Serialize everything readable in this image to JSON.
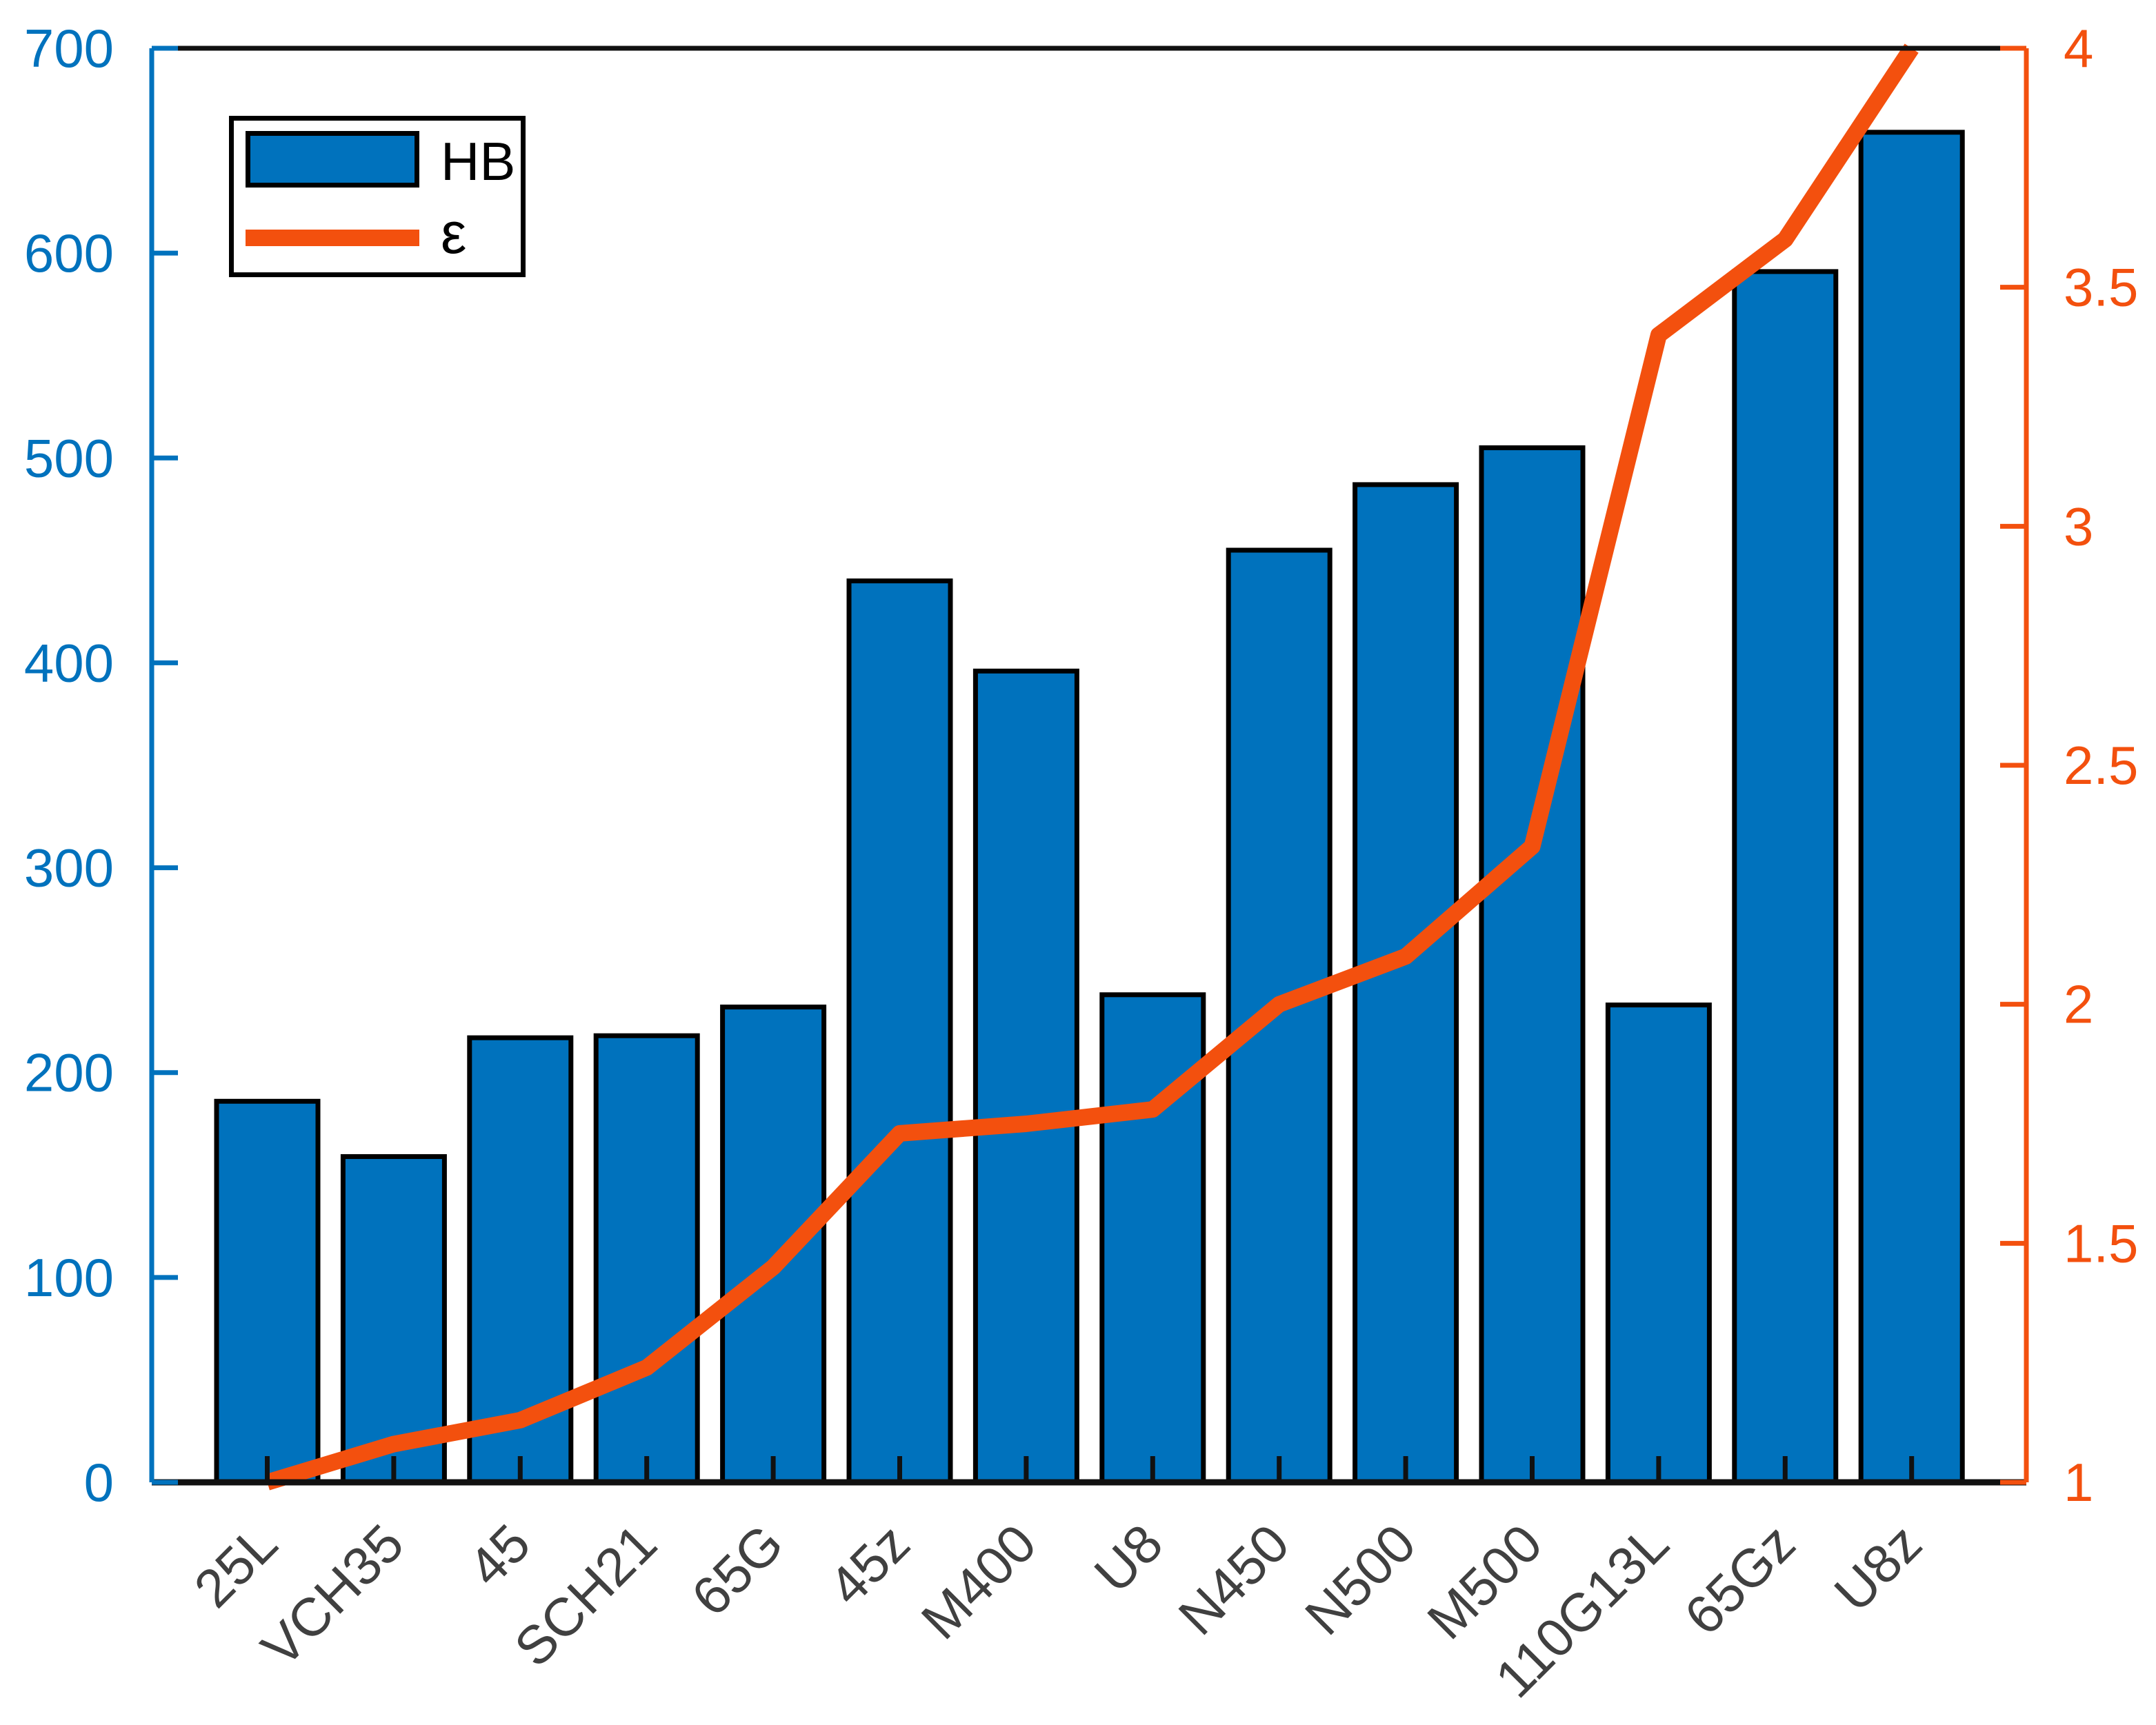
{
  "figure": {
    "background": "#ffffff",
    "plot_box_color": "#000000"
  },
  "legend": {
    "position": "top-left-inside",
    "items": [
      {
        "label": "HB",
        "swatch": "bar-swatch",
        "color": "#0072BD"
      },
      {
        "label": "ε",
        "swatch": "line-swatch",
        "color": "#F3500E"
      }
    ]
  },
  "chart_data": {
    "type": "bar",
    "subtype": "bar-line-combo-dual-axis",
    "title": "",
    "xlabel": "",
    "ylabel": "",
    "categories": [
      "25L",
      "VCH35",
      "45",
      "SCH21",
      "65G",
      "45z",
      "M400",
      "U8",
      "N450",
      "N500",
      "M500",
      "110G13L",
      "65Gz",
      "U8z"
    ],
    "series": [
      {
        "name": "HB",
        "type": "bar",
        "axis": "left",
        "color": "#0072BD",
        "edge_color": "#000000",
        "values": [
          186,
          159,
          217,
          218,
          232,
          440,
          396,
          238,
          455,
          487,
          505,
          233,
          591,
          659
        ]
      },
      {
        "name": "ε",
        "type": "line",
        "axis": "right",
        "color": "#F3500E",
        "values": [
          1.0,
          1.08,
          1.13,
          1.24,
          1.45,
          1.73,
          1.75,
          1.78,
          2.0,
          2.1,
          2.33,
          3.4,
          3.6,
          4.0
        ]
      }
    ],
    "left_axis": {
      "min": 0,
      "max": 700,
      "tick_labels": [
        "0",
        "100",
        "200",
        "300",
        "400",
        "500",
        "600",
        "700"
      ],
      "color": "#0072BD"
    },
    "right_axis": {
      "min": 1,
      "max": 4,
      "tick_labels": [
        "1",
        "1.5",
        "2",
        "2.5",
        "3",
        "3.5",
        "4"
      ],
      "color": "#F3500E"
    },
    "x_axis": {
      "tick_label_color": "#404040",
      "tick_label_angle_deg": 45,
      "line_color": "#111111"
    },
    "grid": false,
    "legend_position": "top-left-inside"
  }
}
